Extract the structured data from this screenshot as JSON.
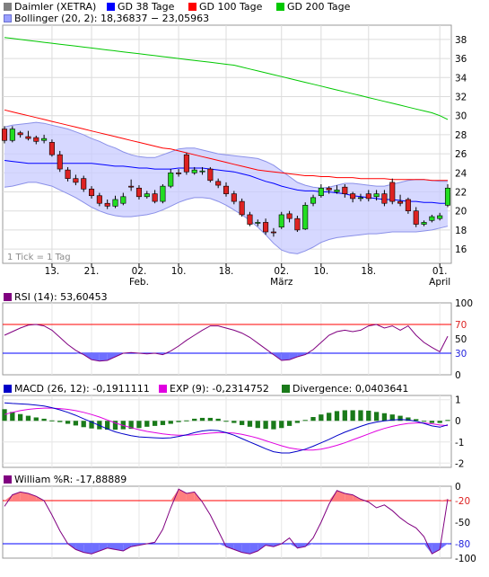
{
  "legend": {
    "price": {
      "label": "Daimler (XETRA)",
      "color": "#7f7f7f"
    },
    "gd38": {
      "label": "GD 38 Tage",
      "color": "#0000ff"
    },
    "gd100": {
      "label": "GD 100 Tage",
      "color": "#ff0000"
    },
    "gd200": {
      "label": "GD 200 Tage",
      "color": "#00c800"
    },
    "bollinger": {
      "label": "Bollinger (20, 2): 18,36837 − 23,05963",
      "color": "#9aa0ff"
    }
  },
  "note": "1 Tick = 1 Tag",
  "rsi_label": "RSI (14): 53,60453",
  "macd_label": "MACD (26, 12): -0,1911111",
  "exp_label": "EXP (9): -0,2314752",
  "divergence_label": "Divergence: 0,0403641",
  "william_label": "William %R: -17,88889",
  "chart_data": [
    {
      "type": "candlestick",
      "name": "price",
      "ylim": [
        14.5,
        39.5
      ],
      "yticks": [
        16,
        18,
        20,
        22,
        24,
        26,
        28,
        30,
        32,
        34,
        36,
        38
      ],
      "xticks": [
        {
          "i": 6,
          "label": "13."
        },
        {
          "i": 11,
          "label": "21."
        },
        {
          "i": 17,
          "label": "02.",
          "sub": "Feb."
        },
        {
          "i": 22,
          "label": "10."
        },
        {
          "i": 28,
          "label": "18."
        },
        {
          "i": 35,
          "label": "02.",
          "sub": "März"
        },
        {
          "i": 40,
          "label": "10."
        },
        {
          "i": 46,
          "label": "18."
        },
        {
          "i": 55,
          "label": "01.",
          "sub": "April"
        }
      ],
      "n": 57,
      "open": [
        28.6,
        27.4,
        28.2,
        27.8,
        27.7,
        27.4,
        27.2,
        25.9,
        24.3,
        23.4,
        23.4,
        22.3,
        21.6,
        20.8,
        20.5,
        20.8,
        22.6,
        22.4,
        21.5,
        21.8,
        21.0,
        22.6,
        24.0,
        25.9,
        24.0,
        24.1,
        24.4,
        23.1,
        22.6,
        21.8,
        21.0,
        19.6,
        18.7,
        18.8,
        17.8,
        18.3,
        19.7,
        19.2,
        18.1,
        20.8,
        21.6,
        22.4,
        22.0,
        22.5,
        21.8,
        21.3,
        21.8,
        21.5,
        21.8,
        23.0,
        21.0,
        21.2,
        20.0,
        18.6,
        19.0,
        19.2,
        20.6
      ],
      "close": [
        27.4,
        28.6,
        28.0,
        27.6,
        27.3,
        27.6,
        25.9,
        24.4,
        23.4,
        23.0,
        22.3,
        21.6,
        20.8,
        20.5,
        21.2,
        21.5,
        22.5,
        21.5,
        21.8,
        21.0,
        22.6,
        24.0,
        23.9,
        24.1,
        24.3,
        24.2,
        23.2,
        22.7,
        21.8,
        21.0,
        19.6,
        18.6,
        18.8,
        17.8,
        17.7,
        19.6,
        19.2,
        18.0,
        20.6,
        21.4,
        22.4,
        22.2,
        22.2,
        21.8,
        21.3,
        21.4,
        21.3,
        21.8,
        20.8,
        21.0,
        20.8,
        20.0,
        18.6,
        18.8,
        19.4,
        19.5,
        22.4
      ],
      "high": [
        28.9,
        28.9,
        28.4,
        28.4,
        27.9,
        28.0,
        27.5,
        26.3,
        24.6,
        23.8,
        23.7,
        22.6,
        21.9,
        21.2,
        21.6,
        21.9,
        23.3,
        22.7,
        22.1,
        22.2,
        22.8,
        24.4,
        24.4,
        26.1,
        24.6,
        24.6,
        24.6,
        23.4,
        23.0,
        22.1,
        21.3,
        19.9,
        19.1,
        19.2,
        18.2,
        19.9,
        20.0,
        19.5,
        20.9,
        21.7,
        22.8,
        22.6,
        22.7,
        22.8,
        22.0,
        21.8,
        22.2,
        22.2,
        22.2,
        23.4,
        21.7,
        21.4,
        20.4,
        19.0,
        19.6,
        19.8,
        22.8
      ],
      "low": [
        27.1,
        27.2,
        27.7,
        27.4,
        27.0,
        27.1,
        25.7,
        24.1,
        23.1,
        22.7,
        22.0,
        21.3,
        20.5,
        20.2,
        20.3,
        20.6,
        22.1,
        21.2,
        21.3,
        20.8,
        20.8,
        22.4,
        23.6,
        23.8,
        23.8,
        23.8,
        23.0,
        22.4,
        21.5,
        20.7,
        19.4,
        18.4,
        18.4,
        17.5,
        17.3,
        18.1,
        18.8,
        17.8,
        18.0,
        20.5,
        21.4,
        21.8,
        21.8,
        21.4,
        20.9,
        21.0,
        21.0,
        21.1,
        20.5,
        20.7,
        20.5,
        19.7,
        18.3,
        18.4,
        18.8,
        19.0,
        20.4
      ],
      "gd38": [
        25.3,
        25.2,
        25.1,
        25.0,
        25.0,
        25.0,
        25.0,
        25.0,
        25.0,
        25.0,
        25.0,
        25.0,
        24.9,
        24.8,
        24.7,
        24.7,
        24.6,
        24.5,
        24.5,
        24.4,
        24.4,
        24.4,
        24.5,
        24.5,
        24.5,
        24.5,
        24.4,
        24.3,
        24.2,
        24.1,
        23.9,
        23.7,
        23.4,
        23.1,
        22.9,
        22.6,
        22.4,
        22.2,
        22.1,
        22.1,
        22.0,
        22.0,
        21.9,
        21.8,
        21.6,
        21.5,
        21.4,
        21.3,
        21.2,
        21.2,
        21.1,
        21.0,
        21.0,
        20.9,
        20.9,
        20.8,
        20.8
      ],
      "gd100": [
        30.6,
        30.4,
        30.2,
        30.0,
        29.8,
        29.6,
        29.4,
        29.2,
        29.0,
        28.8,
        28.6,
        28.4,
        28.2,
        28.0,
        27.8,
        27.6,
        27.4,
        27.2,
        27.0,
        26.8,
        26.6,
        26.5,
        26.3,
        26.1,
        25.9,
        25.7,
        25.5,
        25.3,
        25.1,
        24.9,
        24.7,
        24.5,
        24.3,
        24.2,
        24.1,
        24.0,
        23.9,
        23.8,
        23.7,
        23.7,
        23.6,
        23.6,
        23.5,
        23.5,
        23.5,
        23.4,
        23.4,
        23.4,
        23.4,
        23.3,
        23.3,
        23.3,
        23.3,
        23.3,
        23.2,
        23.2,
        23.2
      ],
      "gd200": [
        38.2,
        38.1,
        38.0,
        37.9,
        37.8,
        37.7,
        37.6,
        37.5,
        37.4,
        37.3,
        37.2,
        37.1,
        37.0,
        36.9,
        36.8,
        36.7,
        36.6,
        36.5,
        36.4,
        36.3,
        36.2,
        36.1,
        36.0,
        35.9,
        35.8,
        35.7,
        35.6,
        35.5,
        35.4,
        35.3,
        35.1,
        34.9,
        34.7,
        34.5,
        34.3,
        34.1,
        33.9,
        33.7,
        33.5,
        33.3,
        33.1,
        32.9,
        32.7,
        32.5,
        32.3,
        32.1,
        31.9,
        31.7,
        31.5,
        31.3,
        31.1,
        30.9,
        30.7,
        30.5,
        30.3,
        30.0,
        29.6
      ],
      "boll_upper": [
        28.8,
        29.0,
        29.1,
        29.2,
        29.3,
        29.2,
        29.0,
        28.8,
        28.6,
        28.3,
        28.0,
        27.6,
        27.3,
        26.9,
        26.6,
        26.2,
        25.9,
        25.7,
        25.6,
        25.6,
        25.9,
        26.2,
        26.5,
        26.6,
        26.6,
        26.4,
        26.2,
        26.0,
        25.9,
        25.8,
        25.7,
        25.6,
        25.5,
        25.2,
        24.8,
        24.2,
        23.6,
        23.0,
        22.7,
        22.5,
        22.4,
        22.5,
        22.7,
        22.9,
        22.9,
        22.8,
        22.7,
        22.6,
        22.6,
        22.8,
        23.0,
        23.2,
        23.3,
        23.3,
        23.2,
        23.1,
        23.1
      ],
      "boll_lower": [
        22.5,
        22.6,
        22.8,
        23.0,
        23.0,
        22.8,
        22.6,
        22.2,
        21.8,
        21.4,
        20.9,
        20.4,
        20.0,
        19.7,
        19.5,
        19.4,
        19.4,
        19.5,
        19.6,
        19.8,
        20.1,
        20.5,
        20.9,
        21.2,
        21.4,
        21.4,
        21.3,
        21.0,
        20.6,
        20.1,
        19.6,
        19.0,
        18.3,
        17.5,
        16.6,
        15.9,
        15.6,
        15.5,
        15.8,
        16.2,
        16.7,
        17.0,
        17.2,
        17.3,
        17.4,
        17.5,
        17.6,
        17.6,
        17.7,
        17.8,
        17.8,
        17.8,
        17.8,
        17.9,
        18.0,
        18.2,
        18.4
      ]
    },
    {
      "type": "line",
      "name": "RSI",
      "ylim": [
        0,
        100
      ],
      "yticks": [
        0,
        30,
        50,
        70,
        100
      ],
      "levels": [
        70,
        30
      ],
      "values": [
        55,
        60,
        65,
        69,
        70,
        68,
        62,
        52,
        42,
        34,
        28,
        21,
        19,
        20,
        25,
        30,
        31,
        30,
        29,
        30,
        28,
        33,
        40,
        48,
        55,
        62,
        68,
        68,
        65,
        62,
        58,
        52,
        44,
        36,
        28,
        20,
        21,
        25,
        28,
        35,
        45,
        55,
        60,
        62,
        60,
        62,
        68,
        70,
        65,
        68,
        62,
        68,
        55,
        45,
        38,
        32,
        53.6
      ]
    },
    {
      "type": "bar+line",
      "name": "MACD",
      "ylim": [
        -2.2,
        1.2
      ],
      "yticks": [
        -2,
        -1,
        0,
        1
      ],
      "macd": [
        0.85,
        0.82,
        0.8,
        0.78,
        0.74,
        0.7,
        0.62,
        0.52,
        0.4,
        0.26,
        0.1,
        -0.06,
        -0.22,
        -0.38,
        -0.52,
        -0.62,
        -0.7,
        -0.76,
        -0.78,
        -0.8,
        -0.82,
        -0.8,
        -0.74,
        -0.66,
        -0.56,
        -0.48,
        -0.44,
        -0.46,
        -0.56,
        -0.68,
        -0.84,
        -1.0,
        -1.16,
        -1.32,
        -1.46,
        -1.52,
        -1.52,
        -1.44,
        -1.34,
        -1.2,
        -1.04,
        -0.88,
        -0.7,
        -0.54,
        -0.4,
        -0.26,
        -0.14,
        -0.06,
        0.0,
        0.04,
        0.06,
        0.04,
        -0.02,
        -0.12,
        -0.24,
        -0.3,
        -0.19
      ],
      "exp": [
        0.3,
        0.4,
        0.48,
        0.54,
        0.58,
        0.6,
        0.6,
        0.58,
        0.54,
        0.48,
        0.4,
        0.3,
        0.18,
        0.04,
        -0.1,
        -0.22,
        -0.32,
        -0.42,
        -0.5,
        -0.56,
        -0.62,
        -0.66,
        -0.68,
        -0.68,
        -0.66,
        -0.62,
        -0.58,
        -0.56,
        -0.56,
        -0.58,
        -0.64,
        -0.72,
        -0.82,
        -0.94,
        -1.06,
        -1.18,
        -1.28,
        -1.34,
        -1.38,
        -1.38,
        -1.34,
        -1.26,
        -1.16,
        -1.04,
        -0.9,
        -0.76,
        -0.62,
        -0.48,
        -0.36,
        -0.26,
        -0.18,
        -0.12,
        -0.1,
        -0.1,
        -0.14,
        -0.2,
        -0.23
      ],
      "divergence": [
        0.55,
        0.42,
        0.32,
        0.24,
        0.16,
        0.1,
        0.02,
        -0.06,
        -0.14,
        -0.22,
        -0.3,
        -0.36,
        -0.4,
        -0.42,
        -0.42,
        -0.4,
        -0.38,
        -0.34,
        -0.28,
        -0.24,
        -0.2,
        -0.14,
        -0.06,
        0.02,
        0.1,
        0.14,
        0.14,
        0.1,
        0.0,
        -0.1,
        -0.2,
        -0.28,
        -0.34,
        -0.38,
        -0.4,
        -0.34,
        -0.24,
        -0.1,
        0.04,
        0.18,
        0.3,
        0.38,
        0.46,
        0.5,
        0.5,
        0.5,
        0.48,
        0.42,
        0.36,
        0.3,
        0.24,
        0.16,
        0.08,
        -0.02,
        -0.1,
        -0.1,
        0.04
      ]
    },
    {
      "type": "line",
      "name": "William %R",
      "ylim": [
        -100,
        0
      ],
      "yticks": [
        0,
        -20,
        -50,
        -80,
        -100
      ],
      "levels": [
        -20,
        -80
      ],
      "values": [
        -28,
        -12,
        -8,
        -10,
        -14,
        -20,
        -40,
        -62,
        -80,
        -88,
        -92,
        -94,
        -90,
        -86,
        -88,
        -90,
        -84,
        -82,
        -80,
        -78,
        -60,
        -30,
        -4,
        -10,
        -8,
        -22,
        -40,
        -62,
        -84,
        -88,
        -92,
        -94,
        -90,
        -82,
        -84,
        -80,
        -72,
        -86,
        -84,
        -72,
        -50,
        -25,
        -6,
        -10,
        -12,
        -18,
        -22,
        -30,
        -26,
        -34,
        -44,
        -52,
        -58,
        -70,
        -94,
        -88,
        -17.9
      ]
    }
  ]
}
